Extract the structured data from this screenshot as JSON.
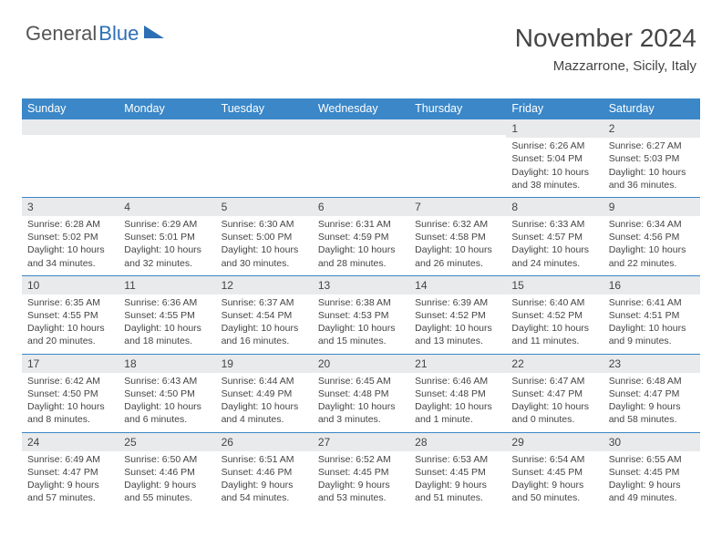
{
  "logo": {
    "part1": "General",
    "part2": "Blue"
  },
  "header": {
    "title": "November 2024",
    "location": "Mazzarrone, Sicily, Italy"
  },
  "colors": {
    "brand": "#3b87c8",
    "daynum_bg": "#e9eaec",
    "text": "#444444"
  },
  "day_names": [
    "Sunday",
    "Monday",
    "Tuesday",
    "Wednesday",
    "Thursday",
    "Friday",
    "Saturday"
  ],
  "weeks": [
    [
      null,
      null,
      null,
      null,
      null,
      {
        "n": "1",
        "sr": "Sunrise: 6:26 AM",
        "ss": "Sunset: 5:04 PM",
        "d1": "Daylight: 10 hours",
        "d2": "and 38 minutes."
      },
      {
        "n": "2",
        "sr": "Sunrise: 6:27 AM",
        "ss": "Sunset: 5:03 PM",
        "d1": "Daylight: 10 hours",
        "d2": "and 36 minutes."
      }
    ],
    [
      {
        "n": "3",
        "sr": "Sunrise: 6:28 AM",
        "ss": "Sunset: 5:02 PM",
        "d1": "Daylight: 10 hours",
        "d2": "and 34 minutes."
      },
      {
        "n": "4",
        "sr": "Sunrise: 6:29 AM",
        "ss": "Sunset: 5:01 PM",
        "d1": "Daylight: 10 hours",
        "d2": "and 32 minutes."
      },
      {
        "n": "5",
        "sr": "Sunrise: 6:30 AM",
        "ss": "Sunset: 5:00 PM",
        "d1": "Daylight: 10 hours",
        "d2": "and 30 minutes."
      },
      {
        "n": "6",
        "sr": "Sunrise: 6:31 AM",
        "ss": "Sunset: 4:59 PM",
        "d1": "Daylight: 10 hours",
        "d2": "and 28 minutes."
      },
      {
        "n": "7",
        "sr": "Sunrise: 6:32 AM",
        "ss": "Sunset: 4:58 PM",
        "d1": "Daylight: 10 hours",
        "d2": "and 26 minutes."
      },
      {
        "n": "8",
        "sr": "Sunrise: 6:33 AM",
        "ss": "Sunset: 4:57 PM",
        "d1": "Daylight: 10 hours",
        "d2": "and 24 minutes."
      },
      {
        "n": "9",
        "sr": "Sunrise: 6:34 AM",
        "ss": "Sunset: 4:56 PM",
        "d1": "Daylight: 10 hours",
        "d2": "and 22 minutes."
      }
    ],
    [
      {
        "n": "10",
        "sr": "Sunrise: 6:35 AM",
        "ss": "Sunset: 4:55 PM",
        "d1": "Daylight: 10 hours",
        "d2": "and 20 minutes."
      },
      {
        "n": "11",
        "sr": "Sunrise: 6:36 AM",
        "ss": "Sunset: 4:55 PM",
        "d1": "Daylight: 10 hours",
        "d2": "and 18 minutes."
      },
      {
        "n": "12",
        "sr": "Sunrise: 6:37 AM",
        "ss": "Sunset: 4:54 PM",
        "d1": "Daylight: 10 hours",
        "d2": "and 16 minutes."
      },
      {
        "n": "13",
        "sr": "Sunrise: 6:38 AM",
        "ss": "Sunset: 4:53 PM",
        "d1": "Daylight: 10 hours",
        "d2": "and 15 minutes."
      },
      {
        "n": "14",
        "sr": "Sunrise: 6:39 AM",
        "ss": "Sunset: 4:52 PM",
        "d1": "Daylight: 10 hours",
        "d2": "and 13 minutes."
      },
      {
        "n": "15",
        "sr": "Sunrise: 6:40 AM",
        "ss": "Sunset: 4:52 PM",
        "d1": "Daylight: 10 hours",
        "d2": "and 11 minutes."
      },
      {
        "n": "16",
        "sr": "Sunrise: 6:41 AM",
        "ss": "Sunset: 4:51 PM",
        "d1": "Daylight: 10 hours",
        "d2": "and 9 minutes."
      }
    ],
    [
      {
        "n": "17",
        "sr": "Sunrise: 6:42 AM",
        "ss": "Sunset: 4:50 PM",
        "d1": "Daylight: 10 hours",
        "d2": "and 8 minutes."
      },
      {
        "n": "18",
        "sr": "Sunrise: 6:43 AM",
        "ss": "Sunset: 4:50 PM",
        "d1": "Daylight: 10 hours",
        "d2": "and 6 minutes."
      },
      {
        "n": "19",
        "sr": "Sunrise: 6:44 AM",
        "ss": "Sunset: 4:49 PM",
        "d1": "Daylight: 10 hours",
        "d2": "and 4 minutes."
      },
      {
        "n": "20",
        "sr": "Sunrise: 6:45 AM",
        "ss": "Sunset: 4:48 PM",
        "d1": "Daylight: 10 hours",
        "d2": "and 3 minutes."
      },
      {
        "n": "21",
        "sr": "Sunrise: 6:46 AM",
        "ss": "Sunset: 4:48 PM",
        "d1": "Daylight: 10 hours",
        "d2": "and 1 minute."
      },
      {
        "n": "22",
        "sr": "Sunrise: 6:47 AM",
        "ss": "Sunset: 4:47 PM",
        "d1": "Daylight: 10 hours",
        "d2": "and 0 minutes."
      },
      {
        "n": "23",
        "sr": "Sunrise: 6:48 AM",
        "ss": "Sunset: 4:47 PM",
        "d1": "Daylight: 9 hours",
        "d2": "and 58 minutes."
      }
    ],
    [
      {
        "n": "24",
        "sr": "Sunrise: 6:49 AM",
        "ss": "Sunset: 4:47 PM",
        "d1": "Daylight: 9 hours",
        "d2": "and 57 minutes."
      },
      {
        "n": "25",
        "sr": "Sunrise: 6:50 AM",
        "ss": "Sunset: 4:46 PM",
        "d1": "Daylight: 9 hours",
        "d2": "and 55 minutes."
      },
      {
        "n": "26",
        "sr": "Sunrise: 6:51 AM",
        "ss": "Sunset: 4:46 PM",
        "d1": "Daylight: 9 hours",
        "d2": "and 54 minutes."
      },
      {
        "n": "27",
        "sr": "Sunrise: 6:52 AM",
        "ss": "Sunset: 4:45 PM",
        "d1": "Daylight: 9 hours",
        "d2": "and 53 minutes."
      },
      {
        "n": "28",
        "sr": "Sunrise: 6:53 AM",
        "ss": "Sunset: 4:45 PM",
        "d1": "Daylight: 9 hours",
        "d2": "and 51 minutes."
      },
      {
        "n": "29",
        "sr": "Sunrise: 6:54 AM",
        "ss": "Sunset: 4:45 PM",
        "d1": "Daylight: 9 hours",
        "d2": "and 50 minutes."
      },
      {
        "n": "30",
        "sr": "Sunrise: 6:55 AM",
        "ss": "Sunset: 4:45 PM",
        "d1": "Daylight: 9 hours",
        "d2": "and 49 minutes."
      }
    ]
  ]
}
